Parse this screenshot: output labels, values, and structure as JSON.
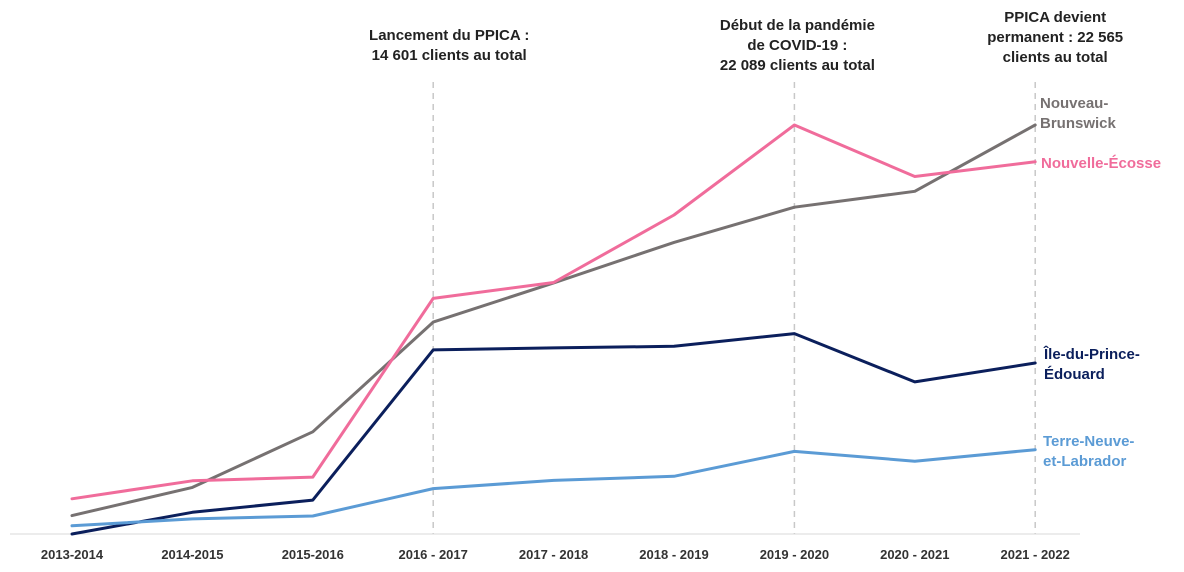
{
  "chart_data": {
    "type": "line",
    "title": "",
    "xlabel": "",
    "ylabel": "",
    "ylim": [
      0,
      1
    ],
    "grid": false,
    "x": [
      "2013-2014",
      "2014-2015",
      "2015-2016",
      "2016 - 2017",
      "2017 - 2018",
      "2018 - 2019",
      "2019 - 2020",
      "2020 - 2021",
      "2021 - 2022"
    ],
    "series": [
      {
        "name": "Nouveau-Brunswick",
        "label_lines": [
          "Nouveau-",
          "Brunswick"
        ],
        "color": "#767171",
        "values": [
          0.045,
          0.114,
          0.25,
          0.518,
          0.614,
          0.713,
          0.799,
          0.838,
          1.0
        ]
      },
      {
        "name": "Nouvelle-Écosse",
        "label_lines": [
          "Nouvelle-Écosse"
        ],
        "color": "#F06C9B",
        "values": [
          0.086,
          0.13,
          0.139,
          0.576,
          0.615,
          0.78,
          1.0,
          0.874,
          0.91
        ]
      },
      {
        "name": "Île-du-Prince-Édouard",
        "label_lines": [
          "Île-du-Prince-",
          "Édouard"
        ],
        "color": "#0B1F5C",
        "values": [
          0.0,
          0.053,
          0.083,
          0.45,
          0.455,
          0.459,
          0.49,
          0.372,
          0.418
        ]
      },
      {
        "name": "Terre-Neuve-et-Labrador",
        "label_lines": [
          "Terre-Neuve-",
          "et-Labrador"
        ],
        "color": "#5B9BD5",
        "values": [
          0.02,
          0.037,
          0.044,
          0.111,
          0.131,
          0.141,
          0.202,
          0.178,
          0.206
        ]
      }
    ],
    "annotations": [
      {
        "x": "2016 - 2017",
        "lines": [
          "Lancement du PPICA :",
          "14 601 clients au total"
        ]
      },
      {
        "x": "2019 - 2020",
        "lines": [
          "Début de la pandémie",
          "de COVID-19 :",
          "22 089 clients au total"
        ]
      },
      {
        "x": "2021 - 2022",
        "lines": [
          "PPICA devient",
          "permanent : 22 565",
          "clients au total"
        ]
      }
    ]
  }
}
